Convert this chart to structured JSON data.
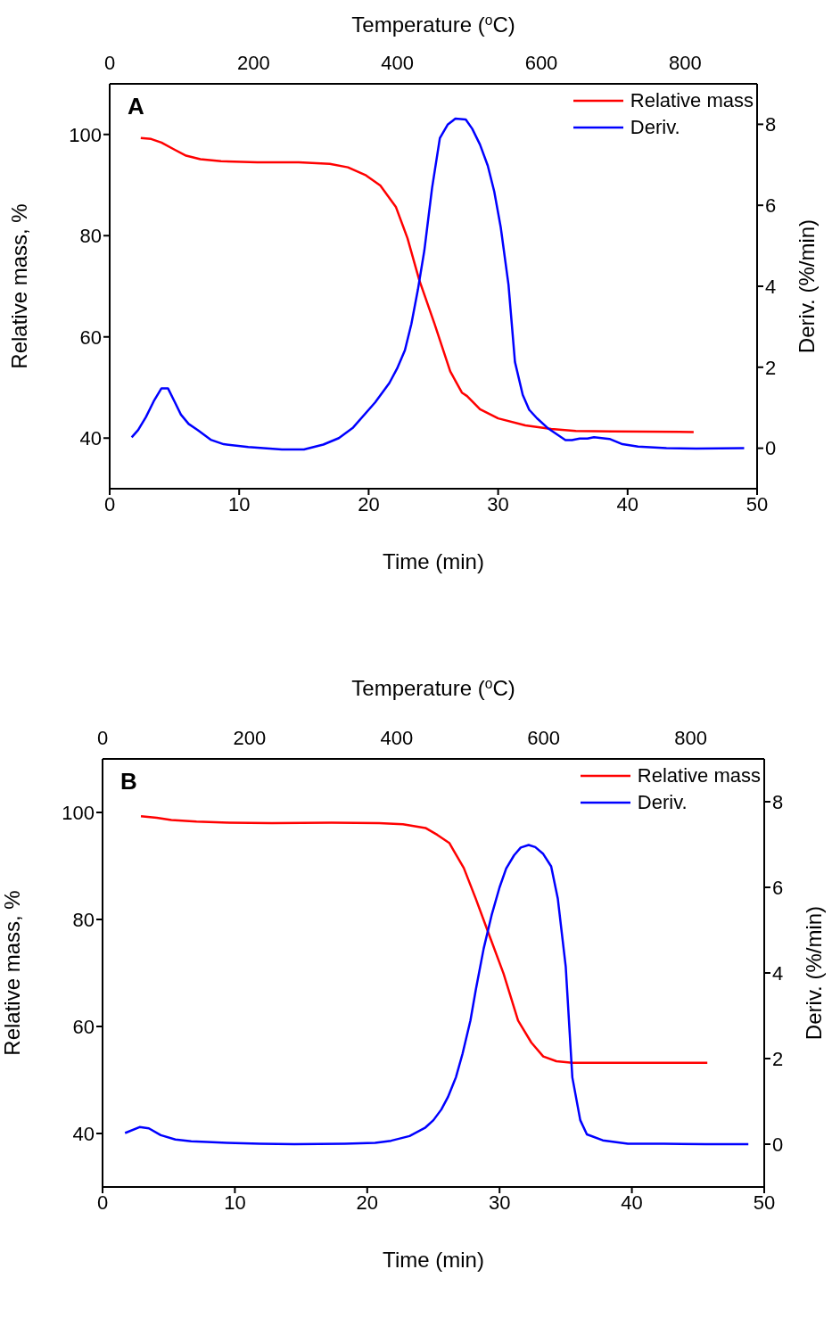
{
  "chart_data": [
    {
      "type": "line",
      "annotations": [
        "A"
      ],
      "xlabel": "Time (min)",
      "x2label": "Temperature ($^{o}$C)",
      "ylabel": "Relative mass, %",
      "y2label": "Deriv. (%/min)",
      "xlim": [
        0,
        50
      ],
      "xticks": [
        0,
        10,
        20,
        30,
        40,
        50
      ],
      "x2lim": [
        0,
        900
      ],
      "x2ticks": [
        0,
        200,
        400,
        600,
        800
      ],
      "ylim": [
        30,
        110
      ],
      "yticks": [
        40,
        60,
        80,
        100
      ],
      "y2lim": [
        -1,
        9
      ],
      "y2ticks": [
        0,
        2,
        4,
        6,
        8
      ],
      "legend": "top right",
      "marker": "none",
      "series": [
        {
          "name": "Relative mass",
          "color": "#ff0000",
          "x": [
            2.4,
            3.2,
            4.0,
            5.0,
            5.9,
            7.0,
            8.6,
            11.4,
            14.6,
            17.0,
            18.4,
            19.8,
            20.9,
            22.1,
            23.0,
            23.9,
            25.1,
            26.3,
            27.2,
            27.6,
            28.6,
            30.0,
            32.1,
            34.1,
            36.0,
            38.8,
            45.1
          ],
          "values": [
            99.3,
            99.1,
            98.4,
            97.0,
            95.8,
            95.1,
            94.7,
            94.5,
            94.5,
            94.2,
            93.5,
            91.9,
            89.9,
            85.7,
            79.5,
            71.3,
            62.5,
            53.2,
            49.0,
            48.3,
            45.7,
            43.9,
            42.5,
            41.8,
            41.4,
            41.3,
            41.2
          ]
        },
        {
          "name": "Deriv.",
          "color": "#0000ff",
          "axis": "y2",
          "x": [
            1.7,
            2.2,
            2.8,
            3.4,
            4.0,
            4.5,
            5.0,
            5.5,
            6.1,
            6.8,
            7.8,
            8.8,
            10.7,
            13.3,
            15.0,
            16.5,
            17.7,
            18.8,
            20.5,
            21.6,
            22.2,
            22.8,
            23.3,
            23.8,
            24.3,
            24.9,
            25.5,
            26.1,
            26.7,
            27.5,
            28.0,
            28.6,
            29.2,
            29.7,
            30.2,
            30.8,
            31.3,
            31.9,
            32.4,
            33.0,
            33.9,
            35.2,
            35.7,
            36.3,
            36.9,
            37.4,
            38.6,
            39.6,
            40.8,
            43.0,
            45.3,
            49.0
          ],
          "values": [
            0.27,
            0.45,
            0.77,
            1.16,
            1.48,
            1.48,
            1.16,
            0.83,
            0.6,
            0.45,
            0.21,
            0.1,
            0.03,
            -0.03,
            -0.03,
            0.09,
            0.25,
            0.51,
            1.13,
            1.61,
            1.97,
            2.42,
            3.07,
            3.91,
            4.88,
            6.43,
            7.66,
            7.99,
            8.14,
            8.12,
            7.89,
            7.5,
            6.98,
            6.34,
            5.46,
            4.04,
            2.13,
            1.32,
            0.95,
            0.74,
            0.48,
            0.2,
            0.2,
            0.24,
            0.24,
            0.27,
            0.23,
            0.1,
            0.04,
            0.0,
            -0.01,
            0.0
          ]
        }
      ]
    },
    {
      "type": "line",
      "annotations": [
        "B"
      ],
      "xlabel": "Time (min)",
      "x2label": "Temperature ($^{o}$C)",
      "ylabel": "Relative mass, %",
      "y2label": "Deriv. (%/min)",
      "xlim": [
        0,
        50
      ],
      "xticks": [
        0,
        10,
        20,
        30,
        40,
        50
      ],
      "x2lim": [
        0,
        900
      ],
      "x2ticks": [
        0,
        200,
        400,
        600,
        800
      ],
      "ylim": [
        30,
        110
      ],
      "yticks": [
        40,
        60,
        80,
        100
      ],
      "y2lim": [
        -1,
        9
      ],
      "y2ticks": [
        0,
        2,
        4,
        6,
        8
      ],
      "legend": "top right",
      "marker": "none",
      "series": [
        {
          "name": "Relative mass",
          "color": "#ff0000",
          "x": [
            2.9,
            4.1,
            5.2,
            7.1,
            9.5,
            12.8,
            17.3,
            20.9,
            22.7,
            24.4,
            25.3,
            26.2,
            27.3,
            28.2,
            29.2,
            30.3,
            31.4,
            32.4,
            33.3,
            34.3,
            35.5,
            39.7,
            45.7
          ],
          "values": [
            99.3,
            99.0,
            98.6,
            98.3,
            98.1,
            98.0,
            98.1,
            98.0,
            97.8,
            97.1,
            95.8,
            94.3,
            89.6,
            83.9,
            77.2,
            69.9,
            61.1,
            57.0,
            54.4,
            53.5,
            53.2,
            53.2,
            53.2
          ]
        },
        {
          "name": "Deriv.",
          "color": "#0000ff",
          "axis": "y2",
          "x": [
            1.7,
            2.8,
            3.5,
            4.4,
            5.5,
            6.7,
            7.9,
            9.4,
            11.9,
            14.5,
            18.3,
            20.6,
            21.8,
            23.2,
            24.4,
            25.0,
            25.6,
            26.1,
            26.7,
            27.2,
            27.8,
            28.2,
            28.8,
            29.4,
            30.0,
            30.5,
            31.1,
            31.6,
            32.2,
            32.7,
            33.3,
            33.9,
            34.4,
            35.0,
            35.5,
            36.1,
            36.6,
            37.8,
            39.7,
            42.4,
            45.6,
            48.8
          ],
          "values": [
            0.26,
            0.4,
            0.37,
            0.21,
            0.11,
            0.07,
            0.05,
            0.03,
            0.01,
            0.0,
            0.01,
            0.03,
            0.08,
            0.19,
            0.39,
            0.56,
            0.81,
            1.1,
            1.56,
            2.11,
            2.89,
            3.6,
            4.57,
            5.35,
            6.0,
            6.44,
            6.75,
            6.93,
            6.99,
            6.94,
            6.78,
            6.49,
            5.74,
            4.15,
            1.56,
            0.56,
            0.23,
            0.09,
            0.01,
            0.01,
            0.0,
            0.0
          ]
        }
      ]
    }
  ]
}
